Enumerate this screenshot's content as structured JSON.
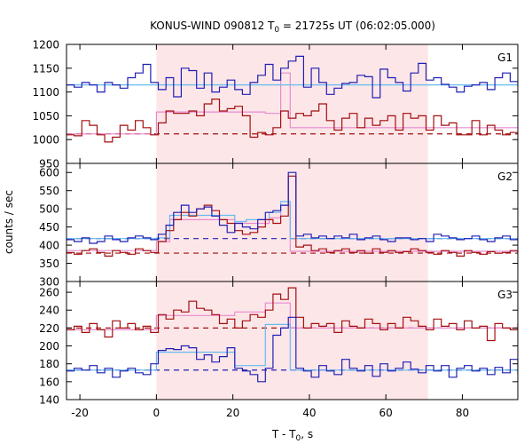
{
  "chart_data": {
    "type": "line",
    "title_parts": {
      "pre": "KONUS-WIND 090812 T",
      "sub": "0",
      "post": " = 21725s UT (06:02:05.000)"
    },
    "xlabel_parts": {
      "pre": "T - T",
      "sub": "0",
      "post": ", s"
    },
    "ylabel": "counts / sec",
    "xlim": [
      -23.5,
      94.5
    ],
    "xticks": [
      -20,
      0,
      20,
      40,
      60,
      80
    ],
    "xtick_labels": [
      "-20",
      "0",
      "20",
      "40",
      "60",
      "80"
    ],
    "shaded_interval": [
      0,
      71
    ],
    "colors": {
      "blue": "#1f1fb4",
      "red": "#a30f0f",
      "lightblue": "#66bbee",
      "pink": "#e88ad0",
      "shade": "#fde6e8",
      "frame": "#000000"
    },
    "panels": [
      {
        "name": "G1",
        "ylim": [
          950,
          1200
        ],
        "yticks": [
          950,
          1000,
          1050,
          1100,
          1150,
          1200
        ],
        "ytick_labels": [
          "950",
          "1000",
          "1050",
          "1100",
          "1150",
          "1200"
        ],
        "x_edges": [
          -23.5,
          -21.5,
          -19.5,
          -17.5,
          -15.5,
          -13.5,
          -11.5,
          -9.5,
          -7.5,
          -5.5,
          -3.5,
          -1.5,
          0.5,
          2.5,
          4.5,
          6.5,
          8.5,
          10.5,
          12.5,
          14.5,
          16.5,
          18.5,
          20.5,
          22.5,
          24.5,
          26.5,
          28.5,
          30.5,
          32.5,
          34.5,
          36.5,
          38.5,
          40.5,
          42.5,
          44.5,
          46.5,
          48.5,
          50.5,
          52.5,
          54.5,
          56.5,
          58.5,
          60.5,
          62.5,
          64.5,
          66.5,
          68.5,
          70.5,
          72.5,
          74.5,
          76.5,
          78.5,
          80.5,
          82.5,
          84.5,
          86.5,
          88.5,
          90.5,
          92.5,
          94.5
        ],
        "series_blue": [
          1115,
          1110,
          1120,
          1115,
          1100,
          1120,
          1115,
          1108,
          1130,
          1140,
          1158,
          1120,
          1105,
          1130,
          1090,
          1150,
          1145,
          1108,
          1140,
          1100,
          1110,
          1125,
          1105,
          1095,
          1120,
          1135,
          1158,
          1125,
          1150,
          1165,
          1175,
          1110,
          1150,
          1120,
          1095,
          1108,
          1118,
          1120,
          1135,
          1132,
          1088,
          1148,
          1130,
          1120,
          1102,
          1140,
          1160,
          1125,
          1130,
          1116,
          1110,
          1100,
          1112,
          1115,
          1120,
          1105,
          1130,
          1140,
          1122,
          1112
        ],
        "series_red": [
          1010,
          1008,
          1040,
          1030,
          1010,
          995,
          1005,
          1030,
          1020,
          1040,
          1025,
          1010,
          1035,
          1060,
          1055,
          1055,
          1060,
          1050,
          1075,
          1085,
          1060,
          1065,
          1070,
          1050,
          1005,
          1015,
          1010,
          1025,
          1060,
          1045,
          1055,
          1050,
          1060,
          1075,
          1040,
          1020,
          1045,
          1055,
          1025,
          1045,
          1030,
          1040,
          1050,
          1020,
          1055,
          1045,
          1050,
          1020,
          1050,
          1030,
          1035,
          1010,
          1010,
          1040,
          1010,
          1030,
          1020,
          1010,
          1015,
          1012
        ],
        "fit_blue_edges": [
          -23.5,
          94.5
        ],
        "fit_blue_values": [
          1115
        ],
        "fit_red_edges": [
          -23.5,
          -1.5,
          0,
          8.5,
          28.5,
          32.5,
          35,
          94.5
        ],
        "fit_red_values": [
          1012,
          1010,
          1058,
          1058,
          1055,
          1140,
          1025
        ],
        "bg_red": 1012
      },
      {
        "name": "G2",
        "ylim": [
          300,
          625
        ],
        "yticks": [
          300,
          350,
          400,
          450,
          500,
          550,
          600
        ],
        "ytick_labels": [
          "300",
          "350",
          "400",
          "450",
          "500",
          "550",
          "600"
        ],
        "x_edges": [
          -23.5,
          -21.5,
          -19.5,
          -17.5,
          -15.5,
          -13.5,
          -11.5,
          -9.5,
          -7.5,
          -5.5,
          -3.5,
          -1.5,
          0.5,
          2.5,
          4.5,
          6.5,
          8.5,
          10.5,
          12.5,
          14.5,
          16.5,
          18.5,
          20.5,
          22.5,
          24.5,
          26.5,
          28.5,
          30.5,
          32.5,
          34.5,
          36.5,
          38.5,
          40.5,
          42.5,
          44.5,
          46.5,
          48.5,
          50.5,
          52.5,
          54.5,
          56.5,
          58.5,
          60.5,
          62.5,
          64.5,
          66.5,
          68.5,
          70.5,
          72.5,
          74.5,
          76.5,
          78.5,
          80.5,
          82.5,
          84.5,
          86.5,
          88.5,
          90.5,
          92.5,
          94.5
        ],
        "series_blue": [
          415,
          410,
          420,
          405,
          410,
          425,
          415,
          410,
          420,
          425,
          420,
          415,
          430,
          455,
          490,
          510,
          490,
          500,
          505,
          480,
          455,
          435,
          460,
          450,
          445,
          470,
          490,
          495,
          510,
          600,
          425,
          430,
          420,
          425,
          418,
          425,
          420,
          430,
          415,
          420,
          425,
          415,
          410,
          420,
          420,
          415,
          418,
          410,
          430,
          425,
          420,
          415,
          418,
          425,
          415,
          410,
          420,
          425,
          415,
          420
        ],
        "series_red": [
          380,
          375,
          385,
          390,
          380,
          370,
          385,
          380,
          375,
          390,
          385,
          380,
          410,
          440,
          470,
          490,
          480,
          500,
          510,
          495,
          470,
          460,
          440,
          430,
          435,
          450,
          470,
          460,
          480,
          590,
          395,
          400,
          385,
          390,
          380,
          385,
          390,
          380,
          385,
          378,
          390,
          380,
          385,
          380,
          382,
          390,
          385,
          380,
          375,
          385,
          380,
          370,
          385,
          380,
          375,
          382,
          378,
          380,
          385,
          378
        ],
        "fit_blue_edges": [
          -23.5,
          0,
          3.5,
          20.5,
          23.5,
          29.5,
          32.5,
          35,
          94.5
        ],
        "fit_blue_values": [
          418,
          420,
          482,
          465,
          470,
          490,
          520,
          418
        ],
        "fit_red_edges": [
          -23.5,
          0,
          3.5,
          20.5,
          23.5,
          29.5,
          32.5,
          35,
          94.5
        ],
        "fit_red_values": [
          385,
          410,
          470,
          460,
          460,
          475,
          510,
          383
        ],
        "bg_blue": 418,
        "bg_red": 378
      },
      {
        "name": "G3",
        "ylim": [
          140,
          272
        ],
        "yticks": [
          140,
          160,
          180,
          200,
          220,
          240,
          260
        ],
        "ytick_labels": [
          "140",
          "160",
          "180",
          "200",
          "220",
          "240",
          "260"
        ],
        "x_edges": [
          -23.5,
          -21.5,
          -19.5,
          -17.5,
          -15.5,
          -13.5,
          -11.5,
          -9.5,
          -7.5,
          -5.5,
          -3.5,
          -1.5,
          0.5,
          2.5,
          4.5,
          6.5,
          8.5,
          10.5,
          12.5,
          14.5,
          16.5,
          18.5,
          20.5,
          22.5,
          24.5,
          26.5,
          28.5,
          30.5,
          32.5,
          34.5,
          36.5,
          38.5,
          40.5,
          42.5,
          44.5,
          46.5,
          48.5,
          50.5,
          52.5,
          54.5,
          56.5,
          58.5,
          60.5,
          62.5,
          64.5,
          66.5,
          68.5,
          70.5,
          72.5,
          74.5,
          76.5,
          78.5,
          80.5,
          82.5,
          84.5,
          86.5,
          88.5,
          90.5,
          92.5,
          94.5
        ],
        "series_blue": [
          172,
          175,
          173,
          178,
          170,
          175,
          165,
          172,
          175,
          170,
          168,
          180,
          195,
          197,
          196,
          200,
          198,
          185,
          190,
          182,
          188,
          198,
          175,
          172,
          168,
          160,
          175,
          212,
          220,
          232,
          175,
          172,
          165,
          178,
          172,
          168,
          185,
          175,
          172,
          178,
          166,
          180,
          172,
          175,
          182,
          174,
          170,
          178,
          172,
          178,
          165,
          175,
          178,
          172,
          175,
          168,
          176,
          170,
          185,
          168
        ],
        "series_red": [
          218,
          222,
          215,
          225,
          218,
          210,
          228,
          220,
          225,
          218,
          222,
          215,
          235,
          230,
          240,
          238,
          250,
          242,
          240,
          235,
          225,
          230,
          220,
          228,
          235,
          232,
          240,
          258,
          252,
          265,
          232,
          220,
          225,
          222,
          225,
          215,
          228,
          222,
          220,
          230,
          225,
          218,
          225,
          220,
          232,
          228,
          222,
          218,
          230,
          222,
          225,
          218,
          228,
          220,
          222,
          206,
          225,
          220,
          218,
          225
        ],
        "fit_blue_edges": [
          -23.5,
          0,
          20.5,
          28.5,
          32,
          35,
          94.5
        ],
        "fit_blue_values": [
          173,
          193,
          178,
          224,
          224,
          173
        ],
        "fit_red_edges": [
          -23.5,
          -3.5,
          0,
          20.5,
          28.5,
          35,
          94.5
        ],
        "fit_red_values": [
          218,
          218,
          234,
          238,
          248,
          220
        ],
        "bg_blue": 173,
        "bg_red": 220
      }
    ]
  }
}
